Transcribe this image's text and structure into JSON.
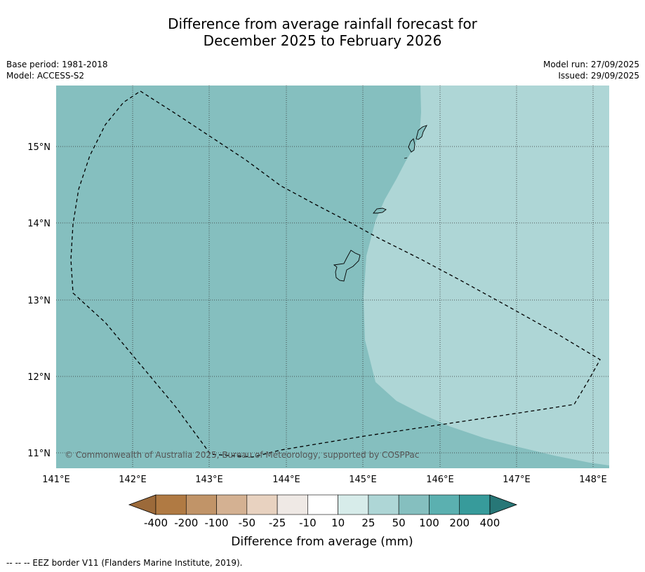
{
  "title": {
    "line1": "Difference from average rainfall forecast for",
    "line2": "December 2025 to February 2026"
  },
  "meta_left": {
    "base_period": "Base period: 1981-2018",
    "model": "Model: ACCESS-S2"
  },
  "meta_right": {
    "model_run": "Model run: 27/09/2025",
    "issued": "Issued: 29/09/2025"
  },
  "map": {
    "lon_ticks": [
      "141°E",
      "142°E",
      "143°E",
      "144°E",
      "145°E",
      "146°E",
      "147°E",
      "148°E"
    ],
    "lat_ticks": [
      "15°N",
      "14°N",
      "13°N",
      "12°N",
      "11°N"
    ],
    "copyright": "© Commonwealth of Australia 2025, Bureau of Meteorology, supported by COSPPac",
    "colors": {
      "band_50_100": "#85bfbf",
      "band_25_50": "#aed6d6",
      "grid": "#333333",
      "eez": "#000000"
    }
  },
  "colorbar": {
    "labels": [
      "-400",
      "-200",
      "-100",
      "-50",
      "-25",
      "-10",
      "10",
      "25",
      "50",
      "100",
      "200",
      "400"
    ],
    "colors": [
      "#9c6a3a",
      "#b07a43",
      "#c19468",
      "#d4b192",
      "#e8d2c0",
      "#efe9e5",
      "#ffffff",
      "#d7ecea",
      "#aed6d6",
      "#85bfbf",
      "#5bb0b0",
      "#379b9b",
      "#277777"
    ],
    "xlabel": "Difference from average (mm)"
  },
  "footer": {
    "legend": "-- -- -- EEZ border V11 (Flanders Marine Institute, 2019)."
  }
}
